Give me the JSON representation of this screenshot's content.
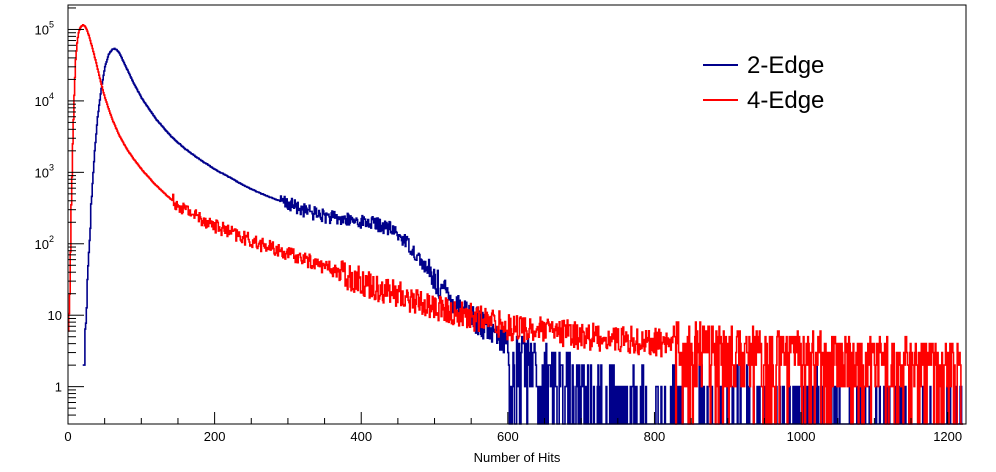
{
  "chart_data": {
    "type": "line",
    "title": "",
    "xlabel": "Number of Hits",
    "ylabel": "",
    "xlim": [
      0,
      1225
    ],
    "ylim": [
      0.3,
      220000
    ],
    "y_scale": "log",
    "grid": false,
    "legend_position": "top-right",
    "x_ticks": [
      {
        "value": 0,
        "label": "0"
      },
      {
        "value": 200,
        "label": "200"
      },
      {
        "value": 400,
        "label": "400"
      },
      {
        "value": 600,
        "label": "600"
      },
      {
        "value": 800,
        "label": "800"
      },
      {
        "value": 1000,
        "label": "1000"
      },
      {
        "value": 1200,
        "label": "1200"
      }
    ],
    "y_ticks": [
      {
        "value": 1,
        "label": "1",
        "base": "1",
        "exp": ""
      },
      {
        "value": 10,
        "label": "10",
        "base": "10",
        "exp": ""
      },
      {
        "value": 100,
        "label": "10^2",
        "base": "10",
        "exp": "2"
      },
      {
        "value": 1000,
        "label": "10^3",
        "base": "10",
        "exp": "3"
      },
      {
        "value": 10000,
        "label": "10^4",
        "base": "10",
        "exp": "4"
      },
      {
        "value": 100000,
        "label": "10^5",
        "base": "10",
        "exp": "5"
      }
    ],
    "series": [
      {
        "name": "2-Edge",
        "color": "#00008b",
        "x": [
          20,
          22,
          24,
          26,
          28,
          30,
          33,
          36,
          40,
          45,
          50,
          55,
          60,
          63,
          66,
          70,
          75,
          80,
          90,
          100,
          120,
          140,
          160,
          180,
          200,
          220,
          240,
          260,
          280,
          300,
          320,
          340,
          360,
          380,
          400,
          420,
          440,
          460,
          480,
          500,
          520,
          540,
          560,
          580,
          600,
          620,
          650,
          680,
          700,
          720,
          740,
          760,
          800,
          850,
          900,
          950,
          1000,
          1050,
          1100,
          1150,
          1200,
          1220
        ],
        "y": [
          1,
          3,
          10,
          30,
          80,
          200,
          700,
          2000,
          6000,
          15000,
          30000,
          45000,
          53000,
          54000,
          52000,
          46000,
          36000,
          28000,
          17000,
          11000,
          5500,
          3200,
          2100,
          1500,
          1100,
          850,
          650,
          520,
          430,
          360,
          300,
          260,
          230,
          215,
          205,
          190,
          160,
          110,
          60,
          30,
          18,
          12,
          8,
          5,
          3.5,
          2.5,
          1.7,
          1.2,
          1,
          0.8,
          0.8,
          0.7,
          0.7,
          0.6,
          0.6,
          0.55,
          0.55,
          0.5,
          0.5,
          0.5,
          0.5,
          0.5
        ]
      },
      {
        "name": "4-Edge",
        "color": "#ff0000",
        "x": [
          0,
          2,
          4,
          6,
          8,
          10,
          12,
          14,
          16,
          18,
          20,
          22,
          24,
          26,
          28,
          30,
          35,
          40,
          45,
          50,
          60,
          70,
          80,
          90,
          100,
          120,
          140,
          160,
          180,
          200,
          220,
          240,
          260,
          280,
          300,
          320,
          340,
          360,
          380,
          400,
          420,
          440,
          460,
          480,
          500,
          520,
          540,
          560,
          580,
          600,
          650,
          700,
          750,
          800,
          850,
          900,
          950,
          1000,
          1050,
          1100,
          1150,
          1200,
          1220
        ],
        "y": [
          3,
          30,
          300,
          2500,
          12000,
          38000,
          65000,
          90000,
          105000,
          112000,
          115000,
          112000,
          105000,
          95000,
          82000,
          70000,
          45000,
          28000,
          17000,
          11000,
          5500,
          3200,
          2100,
          1500,
          1100,
          650,
          420,
          300,
          230,
          180,
          145,
          120,
          100,
          85,
          72,
          62,
          52,
          44,
          36,
          30,
          25,
          21,
          18,
          15,
          13,
          11,
          10,
          9,
          8,
          7,
          6,
          5.2,
          4.6,
          4.2,
          3.8,
          3.4,
          3.1,
          2.8,
          2.5,
          2.3,
          2.1,
          1.9,
          1.8
        ]
      }
    ]
  }
}
